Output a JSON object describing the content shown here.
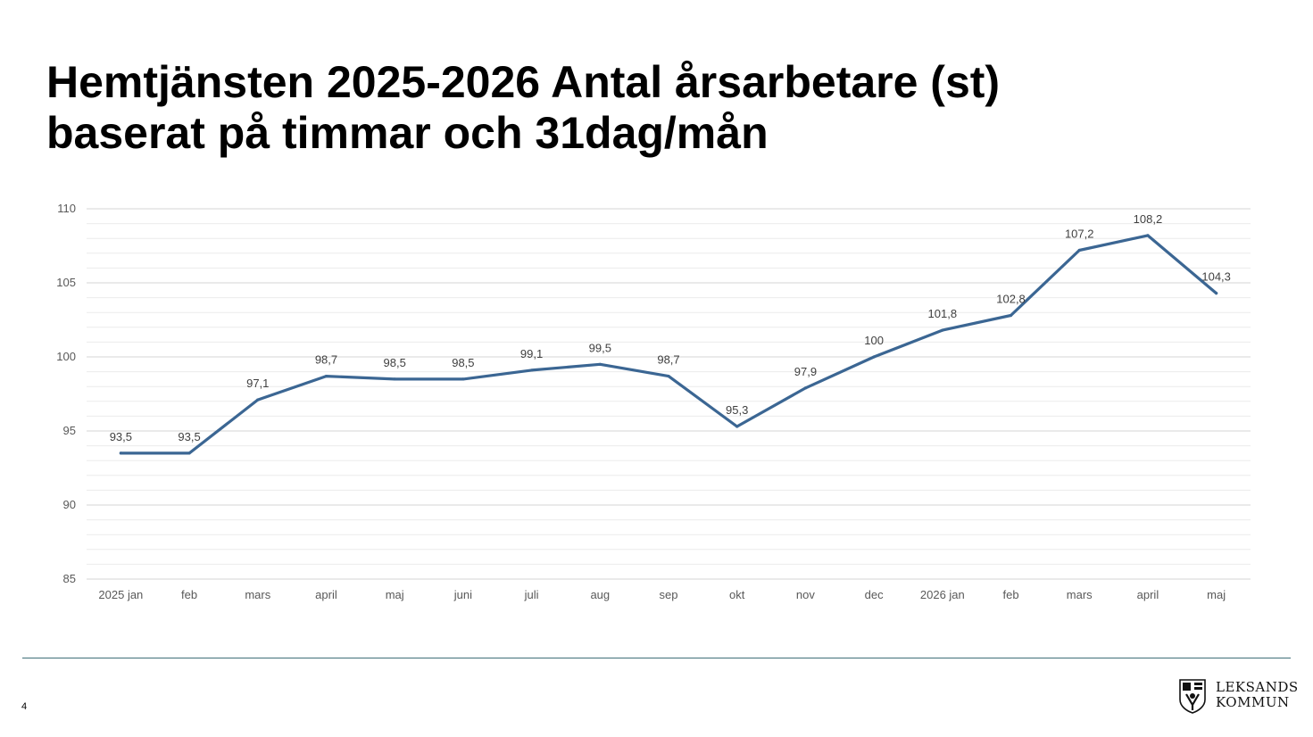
{
  "slide": {
    "title_line1": "Hemtjänsten 2025-2026 Antal årsarbetare (st)",
    "title_line2": "baserat på timmar och 31dag/mån",
    "page_number": "4",
    "logo_line1": "LEKSANDS",
    "logo_line2": "KOMMUN",
    "accent_color": "#3b6693",
    "footer_line_color": "#3f6f78"
  },
  "chart_data": {
    "type": "line",
    "categories": [
      "2025 jan",
      "feb",
      "mars",
      "april",
      "maj",
      "juni",
      "juli",
      "aug",
      "sep",
      "okt",
      "nov",
      "dec",
      "2026 jan",
      "feb",
      "mars",
      "april",
      "maj"
    ],
    "series": [
      {
        "values": [
          93.5,
          93.5,
          97.1,
          98.7,
          98.5,
          98.5,
          99.1,
          99.5,
          98.7,
          95.3,
          97.9,
          100,
          101.8,
          102.8,
          107.2,
          108.2,
          104.3
        ],
        "labels": [
          "93,5",
          "93,5",
          "97,1",
          "98,7",
          "98,5",
          "98,5",
          "99,1",
          "99,5",
          "98,7",
          "95,3",
          "97,9",
          "100",
          "101,8",
          "102,8",
          "107,2",
          "108,2",
          "104,3"
        ],
        "color": "#3b6693"
      }
    ],
    "y_ticks": [
      "85",
      "90",
      "95",
      "100",
      "105",
      "110"
    ],
    "ylim": [
      85,
      110
    ],
    "y_minor_step": 1,
    "grid": true,
    "legend": "none"
  }
}
